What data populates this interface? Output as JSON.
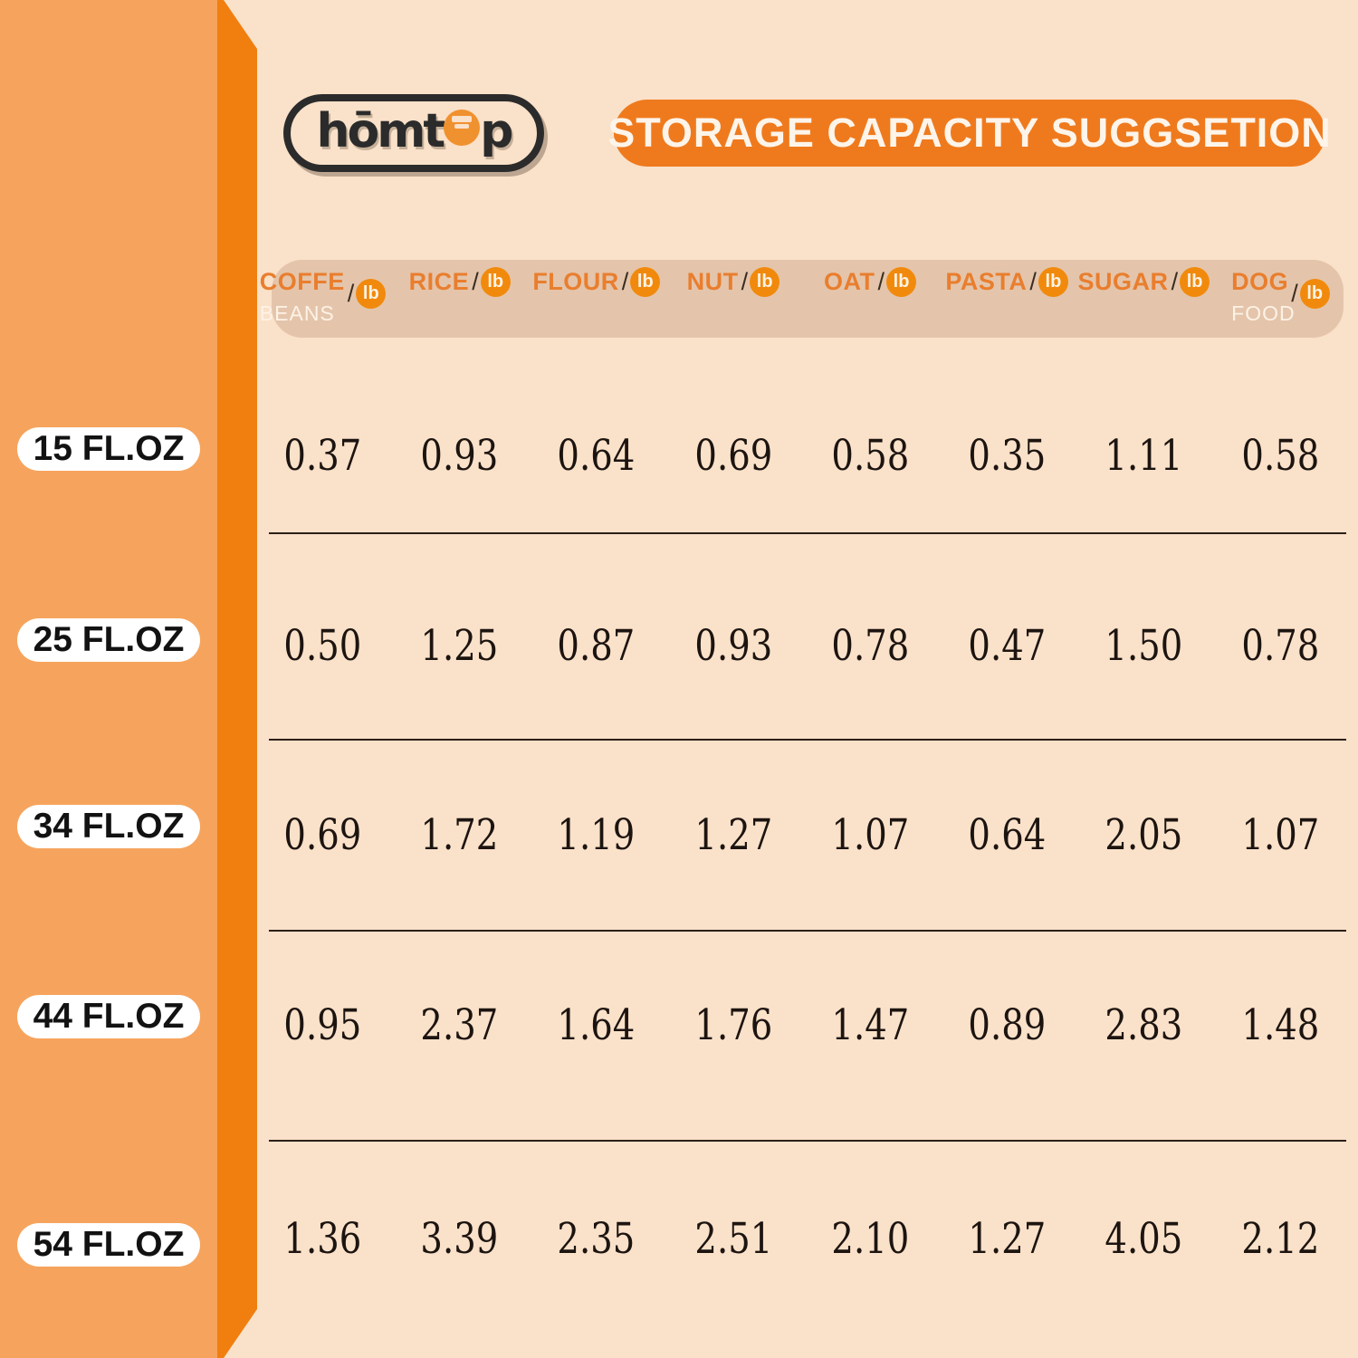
{
  "logo": {
    "text_left": "hōmt",
    "text_right": "p"
  },
  "banner": {
    "title": "STORAGE CAPACITY SUGGSETION",
    "color": "#EF7A1D"
  },
  "table": {
    "columns": [
      {
        "label": "COFFE",
        "slash": "/",
        "unit": "lb",
        "sublabel": "BEANS"
      },
      {
        "label": "RICE",
        "slash": "/",
        "unit": "lb",
        "sublabel": ""
      },
      {
        "label": "FLOUR",
        "slash": "/",
        "unit": "lb",
        "sublabel": ""
      },
      {
        "label": "NUT",
        "slash": "/",
        "unit": "lb",
        "sublabel": ""
      },
      {
        "label": "OAT",
        "slash": "/",
        "unit": "lb",
        "sublabel": ""
      },
      {
        "label": "PASTA",
        "slash": "/",
        "unit": "lb",
        "sublabel": ""
      },
      {
        "label": "SUGAR",
        "slash": "/",
        "unit": "lb",
        "sublabel": ""
      },
      {
        "label": "DOG",
        "slash": "/",
        "unit": "lb",
        "sublabel": "FOOD"
      }
    ],
    "rows": [
      {
        "size": "15 FL.OZ",
        "values": [
          "0.37",
          "0.93",
          "0.64",
          "0.69",
          "0.58",
          "0.35",
          "1.11",
          "0.58"
        ]
      },
      {
        "size": "25 FL.OZ",
        "values": [
          "0.50",
          "1.25",
          "0.87",
          "0.93",
          "0.78",
          "0.47",
          "1.50",
          "0.78"
        ]
      },
      {
        "size": "34 FL.OZ",
        "values": [
          "0.69",
          "1.72",
          "1.19",
          "1.27",
          "1.07",
          "0.64",
          "2.05",
          "1.07"
        ]
      },
      {
        "size": "44 FL.OZ",
        "values": [
          "0.95",
          "2.37",
          "1.64",
          "1.76",
          "1.47",
          "0.89",
          "2.83",
          "1.48"
        ]
      },
      {
        "size": "54 FL.OZ",
        "values": [
          "1.36",
          "3.39",
          "2.35",
          "2.51",
          "2.10",
          "1.27",
          "4.05",
          "2.12"
        ]
      }
    ]
  },
  "chart_data": {
    "type": "table",
    "title": "STORAGE CAPACITY SUGGSETION",
    "columns": [
      "COFFE BEANS /lb",
      "RICE /lb",
      "FLOUR /lb",
      "NUT /lb",
      "OAT /lb",
      "PASTA /lb",
      "SUGAR /lb",
      "DOG FOOD /lb"
    ],
    "row_labels": [
      "15 FL.OZ",
      "25 FL.OZ",
      "34 FL.OZ",
      "44 FL.OZ",
      "54 FL.OZ"
    ],
    "values": [
      [
        0.37,
        0.93,
        0.64,
        0.69,
        0.58,
        0.35,
        1.11,
        0.58
      ],
      [
        0.5,
        1.25,
        0.87,
        0.93,
        0.78,
        0.47,
        1.5,
        0.78
      ],
      [
        0.69,
        1.72,
        1.19,
        1.27,
        1.07,
        0.64,
        2.05,
        1.07
      ],
      [
        0.95,
        2.37,
        1.64,
        1.76,
        1.47,
        0.89,
        2.83,
        1.48
      ],
      [
        1.36,
        3.39,
        2.35,
        2.51,
        2.1,
        1.27,
        4.05,
        2.12
      ]
    ],
    "units": "lb"
  },
  "colors": {
    "background_peach": "#FAE1C9",
    "left_band_light": "#F6A45D",
    "left_band_dark": "#F07F10",
    "banner_orange": "#EF7A1D",
    "header_band": "#E4C5AB",
    "header_text_orange": "#E97E2E",
    "lb_circle_orange": "#F18A0C",
    "value_text": "#1C1410"
  }
}
